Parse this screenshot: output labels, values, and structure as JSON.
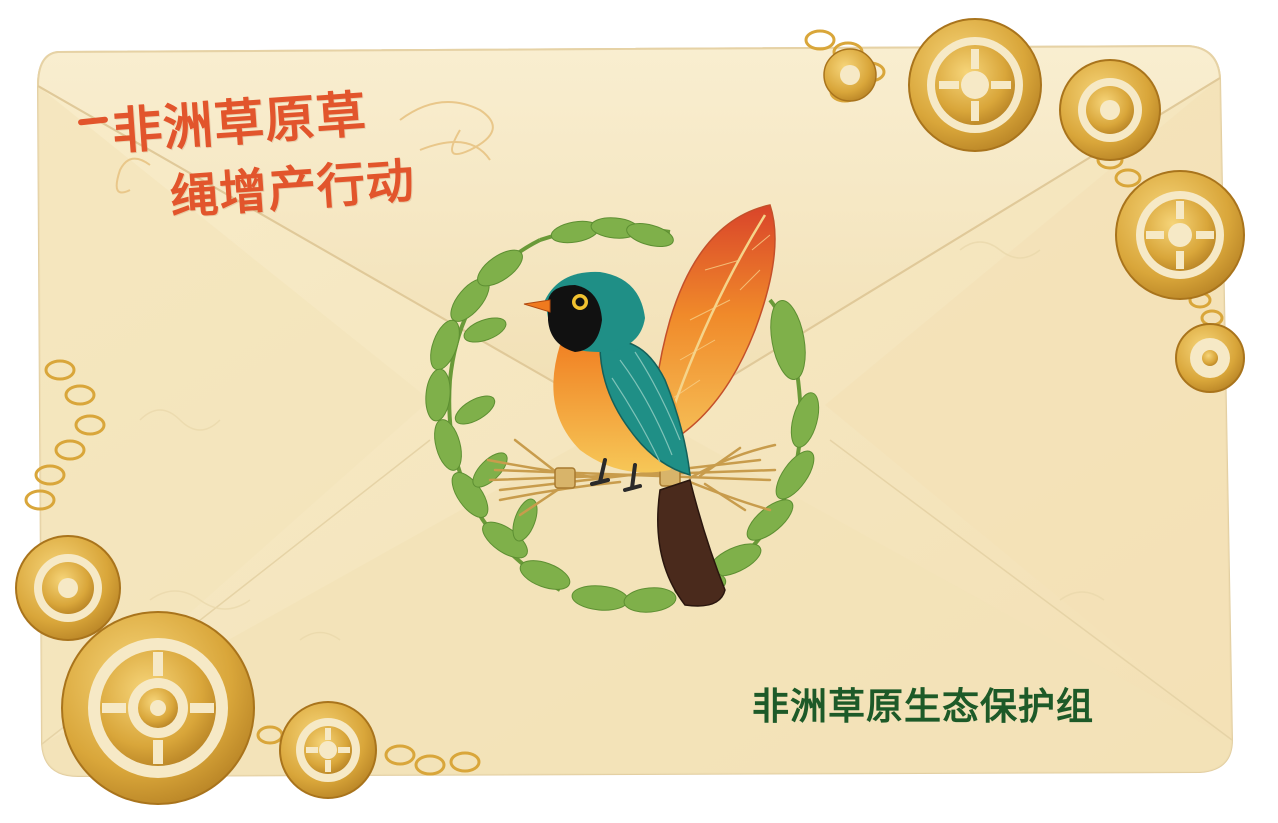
{
  "envelope": {
    "title_line1": "非洲草原草",
    "title_line2": "绳增产行动",
    "signature": "非洲草原生态保护组"
  },
  "colors": {
    "paper": "#f6e9c6",
    "paper_shadow": "#e8d4a8",
    "title_orange": "#e2552c",
    "signature_green": "#1d5a28",
    "gear_gold": "#d9a63a",
    "leaf_green": "#7fb04a",
    "bird_teal": "#1f8f86",
    "bird_orange": "#f07a1e",
    "feather_red": "#d9442a",
    "straw": "#d8b46a"
  },
  "icons": [
    "gear-icon",
    "chain-icon",
    "bird-emblem",
    "laurel-wreath",
    "feather"
  ]
}
